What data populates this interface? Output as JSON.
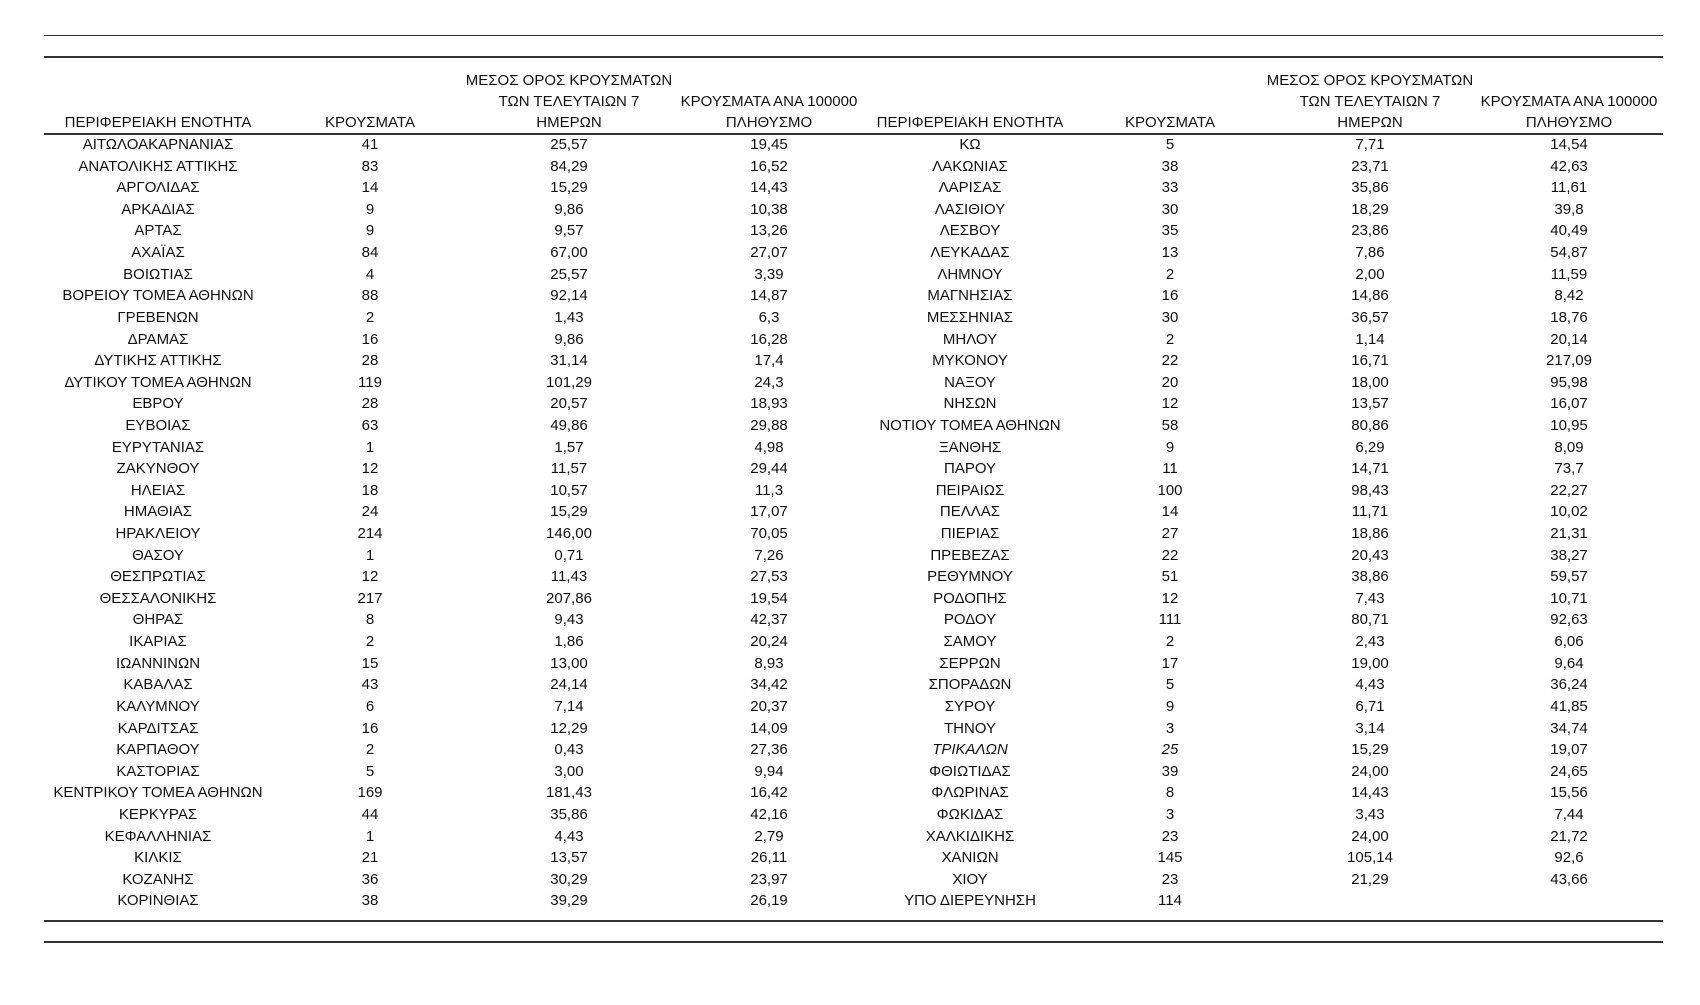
{
  "table": {
    "header": [
      [
        "ΠΕΡΙΦΕΡΕΙΑΚΗ ΕΝΟΤΗΤΑ"
      ],
      [
        "ΚΡΟΥΣΜΑΤΑ"
      ],
      [
        "ΜΕΣΟΣ ΟΡΟΣ ΚΡΟΥΣΜΑΤΩΝ",
        "ΤΩΝ ΤΕΛΕΥΤΑΙΩΝ 7",
        "ΗΜΕΡΩΝ"
      ],
      [
        "ΚΡΟΥΣΜΑΤΑ ΑΝΑ 100000",
        "ΠΛΗΘΥΣΜΟ"
      ],
      [
        "ΠΕΡΙΦΕΡΕΙΑΚΗ ΕΝΟΤΗΤΑ"
      ],
      [
        "ΚΡΟΥΣΜΑΤΑ"
      ],
      [
        "ΜΕΣΟΣ ΟΡΟΣ ΚΡΟΥΣΜΑΤΩΝ",
        "ΤΩΝ ΤΕΛΕΥΤΑΙΩΝ 7",
        "ΗΜΕΡΩΝ"
      ],
      [
        "ΚΡΟΥΣΜΑΤΑ ΑΝΑ 100000",
        "ΠΛΗΘΥΣΜΟ"
      ]
    ],
    "rows": [
      [
        "ΑΙΤΩΛΟΑΚΑΡΝΑΝΙΑΣ",
        "41",
        "25,57",
        "19,45",
        "ΚΩ",
        "5",
        "7,71",
        "14,54"
      ],
      [
        "ΑΝΑΤΟΛΙΚΗΣ ΑΤΤΙΚΗΣ",
        "83",
        "84,29",
        "16,52",
        "ΛΑΚΩΝΙΑΣ",
        "38",
        "23,71",
        "42,63"
      ],
      [
        "ΑΡΓΟΛΙΔΑΣ",
        "14",
        "15,29",
        "14,43",
        "ΛΑΡΙΣΑΣ",
        "33",
        "35,86",
        "11,61"
      ],
      [
        "ΑΡΚΑΔΙΑΣ",
        "9",
        "9,86",
        "10,38",
        "ΛΑΣΙΘΙΟΥ",
        "30",
        "18,29",
        "39,8"
      ],
      [
        "ΑΡΤΑΣ",
        "9",
        "9,57",
        "13,26",
        "ΛΕΣΒΟΥ",
        "35",
        "23,86",
        "40,49"
      ],
      [
        "ΑΧΑΪΑΣ",
        "84",
        "67,00",
        "27,07",
        "ΛΕΥΚΑΔΑΣ",
        "13",
        "7,86",
        "54,87"
      ],
      [
        "ΒΟΙΩΤΙΑΣ",
        "4",
        "25,57",
        "3,39",
        "ΛΗΜΝΟΥ",
        "2",
        "2,00",
        "11,59"
      ],
      [
        "ΒΟΡΕΙΟΥ ΤΟΜΕΑ ΑΘΗΝΩΝ",
        "88",
        "92,14",
        "14,87",
        "ΜΑΓΝΗΣΙΑΣ",
        "16",
        "14,86",
        "8,42"
      ],
      [
        "ΓΡΕΒΕΝΩΝ",
        "2",
        "1,43",
        "6,3",
        "ΜΕΣΣΗΝΙΑΣ",
        "30",
        "36,57",
        "18,76"
      ],
      [
        "ΔΡΑΜΑΣ",
        "16",
        "9,86",
        "16,28",
        "ΜΗΛΟΥ",
        "2",
        "1,14",
        "20,14"
      ],
      [
        "ΔΥΤΙΚΗΣ ΑΤΤΙΚΗΣ",
        "28",
        "31,14",
        "17,4",
        "ΜΥΚΟΝΟΥ",
        "22",
        "16,71",
        "217,09"
      ],
      [
        "ΔΥΤΙΚΟΥ ΤΟΜΕΑ ΑΘΗΝΩΝ",
        "119",
        "101,29",
        "24,3",
        "ΝΑΞΟΥ",
        "20",
        "18,00",
        "95,98"
      ],
      [
        "ΕΒΡΟΥ",
        "28",
        "20,57",
        "18,93",
        "ΝΗΣΩΝ",
        "12",
        "13,57",
        "16,07"
      ],
      [
        "ΕΥΒΟΙΑΣ",
        "63",
        "49,86",
        "29,88",
        "ΝΟΤΙΟΥ ΤΟΜΕΑ ΑΘΗΝΩΝ",
        "58",
        "80,86",
        "10,95"
      ],
      [
        "ΕΥΡΥΤΑΝΙΑΣ",
        "1",
        "1,57",
        "4,98",
        "ΞΑΝΘΗΣ",
        "9",
        "6,29",
        "8,09"
      ],
      [
        "ΖΑΚΥΝΘΟΥ",
        "12",
        "11,57",
        "29,44",
        "ΠΑΡΟΥ",
        "11",
        "14,71",
        "73,7"
      ],
      [
        "ΗΛΕΙΑΣ",
        "18",
        "10,57",
        "11,3",
        "ΠΕΙΡΑΙΩΣ",
        "100",
        "98,43",
        "22,27"
      ],
      [
        "ΗΜΑΘΙΑΣ",
        "24",
        "15,29",
        "17,07",
        "ΠΕΛΛΑΣ",
        "14",
        "11,71",
        "10,02"
      ],
      [
        "ΗΡΑΚΛΕΙΟΥ",
        "214",
        "146,00",
        "70,05",
        "ΠΙΕΡΙΑΣ",
        "27",
        "18,86",
        "21,31"
      ],
      [
        "ΘΑΣΟΥ",
        "1",
        "0,71",
        "7,26",
        "ΠΡΕΒΕΖΑΣ",
        "22",
        "20,43",
        "38,27"
      ],
      [
        "ΘΕΣΠΡΩΤΙΑΣ",
        "12",
        "11,43",
        "27,53",
        "ΡΕΘΥΜΝΟΥ",
        "51",
        "38,86",
        "59,57"
      ],
      [
        "ΘΕΣΣΑΛΟΝΙΚΗΣ",
        "217",
        "207,86",
        "19,54",
        "ΡΟΔΟΠΗΣ",
        "12",
        "7,43",
        "10,71"
      ],
      [
        "ΘΗΡΑΣ",
        "8",
        "9,43",
        "42,37",
        "ΡΟΔΟΥ",
        "111",
        "80,71",
        "92,63"
      ],
      [
        "ΙΚΑΡΙΑΣ",
        "2",
        "1,86",
        "20,24",
        "ΣΑΜΟΥ",
        "2",
        "2,43",
        "6,06"
      ],
      [
        "ΙΩΑΝΝΙΝΩΝ",
        "15",
        "13,00",
        "8,93",
        "ΣΕΡΡΩΝ",
        "17",
        "19,00",
        "9,64"
      ],
      [
        "ΚΑΒΑΛΑΣ",
        "43",
        "24,14",
        "34,42",
        "ΣΠΟΡΑΔΩΝ",
        "5",
        "4,43",
        "36,24"
      ],
      [
        "ΚΑΛΥΜΝΟΥ",
        "6",
        "7,14",
        "20,37",
        "ΣΥΡΟΥ",
        "9",
        "6,71",
        "41,85"
      ],
      [
        "ΚΑΡΔΙΤΣΑΣ",
        "16",
        "12,29",
        "14,09",
        "ΤΗΝΟΥ",
        "3",
        "3,14",
        "34,74"
      ],
      [
        "ΚΑΡΠΑΘΟΥ",
        "2",
        "0,43",
        "27,36",
        "ΤΡΙΚΑΛΩΝ",
        "25",
        "15,29",
        "19,07"
      ],
      [
        "ΚΑΣΤΟΡΙΑΣ",
        "5",
        "3,00",
        "9,94",
        "ΦΘΙΩΤΙΔΑΣ",
        "39",
        "24,00",
        "24,65"
      ],
      [
        "ΚΕΝΤΡΙΚΟΥ ΤΟΜΕΑ ΑΘΗΝΩΝ",
        "169",
        "181,43",
        "16,42",
        "ΦΛΩΡΙΝΑΣ",
        "8",
        "14,43",
        "15,56"
      ],
      [
        "ΚΕΡΚΥΡΑΣ",
        "44",
        "35,86",
        "42,16",
        "ΦΩΚΙΔΑΣ",
        "3",
        "3,43",
        "7,44"
      ],
      [
        "ΚΕΦΑΛΛΗΝΙΑΣ",
        "1",
        "4,43",
        "2,79",
        "ΧΑΛΚΙΔΙΚΗΣ",
        "23",
        "24,00",
        "21,72"
      ],
      [
        "ΚΙΛΚΙΣ",
        "21",
        "13,57",
        "26,11",
        "ΧΑΝΙΩΝ",
        "145",
        "105,14",
        "92,6"
      ],
      [
        "ΚΟΖΑΝΗΣ",
        "36",
        "30,29",
        "23,97",
        "ΧΙΟΥ",
        "23",
        "21,29",
        "43,66"
      ],
      [
        "ΚΟΡΙΝΘΙΑΣ",
        "38",
        "39,29",
        "26,19",
        "ΥΠΟ ΔΙΕΡΕΥΝΗΣΗ",
        "114"
      ]
    ]
  }
}
